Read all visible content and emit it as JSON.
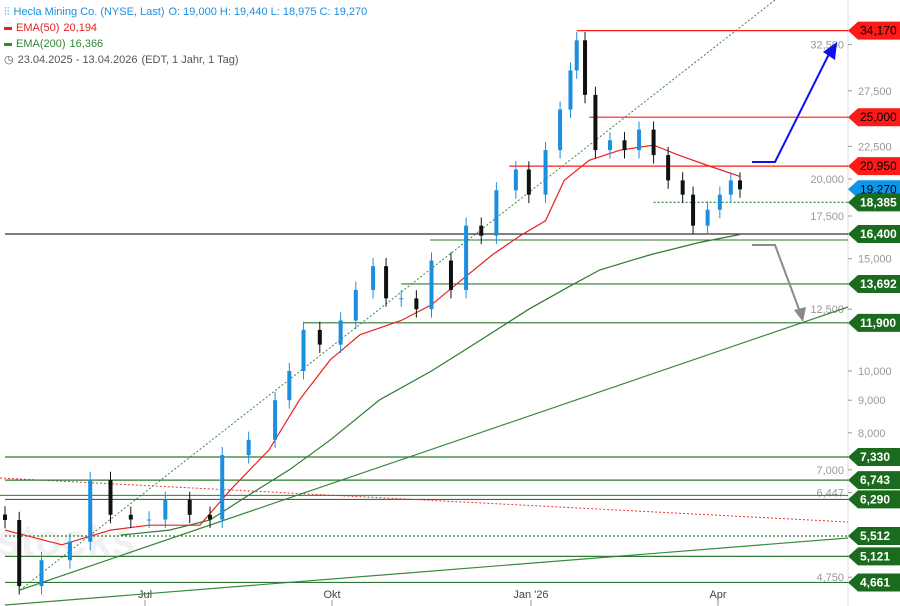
{
  "legend": {
    "title": "Hecla Mining Co. (NYSE, Last)",
    "ohlc": "O: 19,000  H: 19,440  L: 18,975  C: 19,270",
    "ema50": "EMA(50)",
    "ema50_value": "20,194",
    "ema200": "EMA(200)",
    "ema200_value": "16,366",
    "range": "23.04.2025 - 13.04.2026",
    "range_info": "(EDT, 1 Jahr, 1 Tag)"
  },
  "watermark": "stocks",
  "colors": {
    "up": "#1a8fe0",
    "down": "#111111",
    "ema50": "#e8231d",
    "ema200": "#2d7a2f",
    "resistance": "#ff1a1a",
    "support": "#1b6b1e",
    "current": "#0d96e8",
    "arrow_up": "#1010ee",
    "arrow_down": "#8a8a8a"
  },
  "chart_data": {
    "type": "candlestick",
    "scale": "log",
    "ylim": [
      4500,
      36000
    ],
    "x_ticks": [
      {
        "date": "2025-07-01",
        "label": "Jul"
      },
      {
        "date": "2025-10-01",
        "label": "Okt"
      },
      {
        "date": "2026-01-01",
        "label": "Jan '26"
      },
      {
        "date": "2026-04-01",
        "label": "Apr"
      }
    ],
    "y_ticks": [
      "32,500",
      "27,500",
      "22,500",
      "20,000",
      "17,500",
      "15,000",
      "12,500",
      "10,000",
      "9,000",
      "8,000",
      "7,000",
      "6,447",
      "4,750"
    ],
    "y_tick_values": [
      32500,
      27500,
      22500,
      20000,
      17500,
      15000,
      12500,
      10000,
      9000,
      8000,
      7000,
      6447,
      4750
    ],
    "closes": [
      [
        "2025-04-23",
        5.84
      ],
      [
        "2025-04-30",
        4.6
      ],
      [
        "2025-05-11",
        5.05
      ],
      [
        "2025-05-25",
        5.4
      ],
      [
        "2025-06-04",
        6.75
      ],
      [
        "2025-06-14",
        5.95
      ],
      [
        "2025-06-24",
        5.85
      ],
      [
        "2025-07-03",
        5.85
      ],
      [
        "2025-07-11",
        6.28
      ],
      [
        "2025-07-23",
        5.95
      ],
      [
        "2025-08-02",
        5.85
      ],
      [
        "2025-08-08",
        7.38
      ],
      [
        "2025-08-21",
        7.8
      ],
      [
        "2025-09-03",
        9.0
      ],
      [
        "2025-09-10",
        10.0
      ],
      [
        "2025-09-17",
        11.6
      ],
      [
        "2025-09-25",
        11.0
      ],
      [
        "2025-10-05",
        12.0
      ],
      [
        "2025-10-12",
        13.4
      ],
      [
        "2025-10-20",
        14.6
      ],
      [
        "2025-10-26",
        13.0
      ],
      [
        "2025-11-02",
        13.0
      ],
      [
        "2025-11-09",
        12.5
      ],
      [
        "2025-11-16",
        14.9
      ],
      [
        "2025-11-25",
        13.4
      ],
      [
        "2025-12-02",
        16.9
      ],
      [
        "2025-12-09",
        16.3
      ],
      [
        "2025-12-16",
        19.2
      ],
      [
        "2025-12-25",
        20.7
      ],
      [
        "2025-12-31",
        18.9
      ],
      [
        "2026-01-08",
        22.2
      ],
      [
        "2026-01-15",
        25.7
      ],
      [
        "2026-01-20",
        29.6
      ],
      [
        "2026-01-23",
        33.0
      ],
      [
        "2026-01-27",
        27.1
      ],
      [
        "2026-02-01",
        22.2
      ],
      [
        "2026-02-08",
        23.0
      ],
      [
        "2026-02-15",
        22.2
      ],
      [
        "2026-02-22",
        23.9
      ],
      [
        "2026-03-01",
        21.8
      ],
      [
        "2026-03-08",
        19.9
      ],
      [
        "2026-03-15",
        18.9
      ],
      [
        "2026-03-20",
        16.9
      ],
      [
        "2026-03-27",
        17.9
      ],
      [
        "2026-04-02",
        18.9
      ],
      [
        "2026-04-08",
        19.9
      ],
      [
        "2026-04-13",
        19.27
      ]
    ],
    "ema50": [
      [
        "2025-04-23",
        5.63
      ],
      [
        "2025-05-21",
        5.34
      ],
      [
        "2025-06-14",
        5.63
      ],
      [
        "2025-07-03",
        5.73
      ],
      [
        "2025-07-28",
        5.73
      ],
      [
        "2025-08-12",
        6.51
      ],
      [
        "2025-08-31",
        7.52
      ],
      [
        "2025-09-15",
        9.01
      ],
      [
        "2025-09-30",
        10.4
      ],
      [
        "2025-10-14",
        11.4
      ],
      [
        "2025-11-02",
        12.0
      ],
      [
        "2025-11-16",
        12.7
      ],
      [
        "2025-11-30",
        13.9
      ],
      [
        "2025-12-14",
        15.2
      ],
      [
        "2025-12-27",
        16.3
      ],
      [
        "2026-01-08",
        17.2
      ],
      [
        "2026-01-17",
        19.9
      ],
      [
        "2026-01-29",
        21.4
      ],
      [
        "2026-02-13",
        22.2
      ],
      [
        "2026-03-01",
        22.6
      ],
      [
        "2026-03-13",
        21.8
      ],
      [
        "2026-03-27",
        21.0
      ],
      [
        "2026-04-13",
        20.19
      ]
    ],
    "ema200": [
      [
        "2025-06-19",
        5.53
      ],
      [
        "2025-07-13",
        5.63
      ],
      [
        "2025-08-02",
        5.84
      ],
      [
        "2025-08-21",
        6.39
      ],
      [
        "2025-09-10",
        7.0
      ],
      [
        "2025-09-30",
        7.79
      ],
      [
        "2025-10-23",
        9.01
      ],
      [
        "2025-11-16",
        10.0
      ],
      [
        "2025-12-09",
        11.2
      ],
      [
        "2025-12-31",
        12.5
      ],
      [
        "2026-01-20",
        13.6
      ],
      [
        "2026-02-03",
        14.4
      ],
      [
        "2026-02-27",
        15.2
      ],
      [
        "2026-03-23",
        15.9
      ],
      [
        "2026-04-13",
        16.37
      ]
    ],
    "levels": [
      {
        "value": 34.17,
        "label": "34,170",
        "kind": "resistance",
        "from": "2026-01-23"
      },
      {
        "value": 25.0,
        "label": "25,000",
        "kind": "resistance",
        "from": "2026-01-29"
      },
      {
        "value": 20.95,
        "label": "20,950",
        "kind": "resistance",
        "from": "2025-12-22"
      },
      {
        "value": 19.27,
        "label": "19,270",
        "kind": "current",
        "from": null
      },
      {
        "value": 18.385,
        "label": "18,385",
        "kind": "dotted",
        "from": "2026-03-01"
      },
      {
        "value": 16.4,
        "label": "16,400",
        "kind": "support",
        "from": "2025-04-23"
      },
      {
        "value": 13.692,
        "label": "13,692",
        "kind": "support",
        "from": "2025-11-02"
      },
      {
        "value": 11.9,
        "label": "11,900",
        "kind": "support",
        "from": "2025-09-17"
      },
      {
        "value": 7.33,
        "label": "7,330",
        "kind": "support",
        "from": "2025-04-23"
      },
      {
        "value": 6.743,
        "label": "6,743",
        "kind": "support",
        "from": "2025-04-23"
      },
      {
        "value": 6.29,
        "label": "6,290",
        "kind": "support",
        "from": "2025-04-23"
      },
      {
        "value": 5.512,
        "label": "5,512",
        "kind": "dotted",
        "from": "2025-04-23"
      },
      {
        "value": 5.121,
        "label": "5,121",
        "kind": "support",
        "from": "2025-04-23"
      },
      {
        "value": 4.661,
        "label": "4,661",
        "kind": "support",
        "from": "2025-04-23"
      }
    ]
  }
}
